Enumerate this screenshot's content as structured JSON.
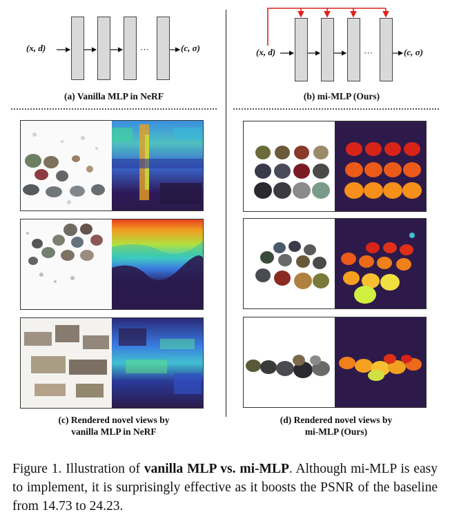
{
  "diagrams": {
    "left": {
      "input": "(x, d)",
      "output": "(c, σ)",
      "ellipsis": "···",
      "caption": "(a) Vanilla MLP in NeRF"
    },
    "right": {
      "input": "(x, d)",
      "output": "(c, σ)",
      "ellipsis": "···",
      "caption": "(b) mi-MLP (Ours)"
    }
  },
  "panels": {
    "left_caption_line1": "(c) Rendered novel views by",
    "left_caption_line2": "vanilla MLP in NeRF",
    "right_caption_line1": "(d) Rendered novel views by",
    "right_caption_line2": "mi-MLP (Ours)"
  },
  "figure_caption": {
    "prefix": "Figure 1. Illustration of ",
    "bold": "vanilla MLP vs. mi-MLP",
    "suffix": ". Although mi-MLP is easy to implement, it is surprisingly effective as it boosts the PSNR of the baseline from 14.73 to 24.23."
  },
  "colors": {
    "red_arrow": "#e0201a",
    "block_fill": "#d9d9d9",
    "depth_dark": "#2e1a4a"
  }
}
